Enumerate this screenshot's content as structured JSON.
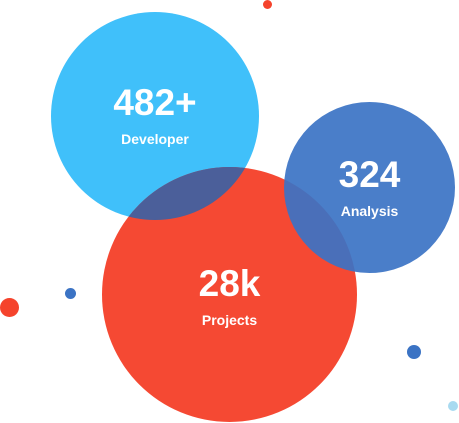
{
  "stats": [
    {
      "value": "482+",
      "label": "Developer"
    },
    {
      "value": "324",
      "label": "Analysis"
    },
    {
      "value": "28k",
      "label": "Projects"
    }
  ],
  "colors": {
    "developer": "#40c0fa",
    "analysis": "#3b73c4",
    "projects": "#f5432c",
    "accent_dot": "#a8daf0",
    "text": "#ffffff"
  }
}
